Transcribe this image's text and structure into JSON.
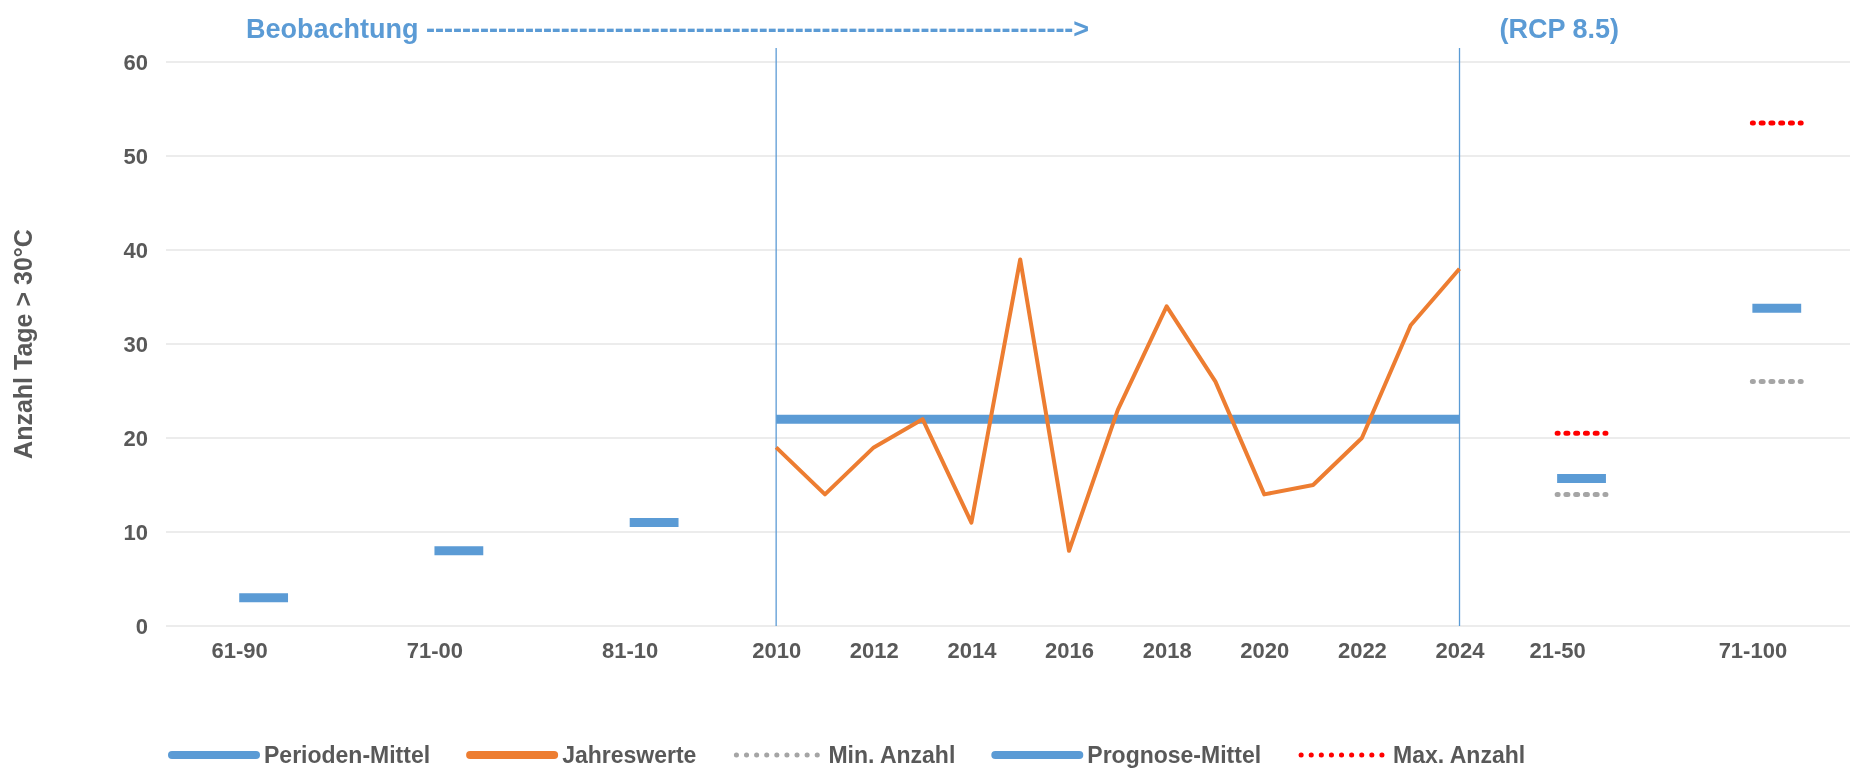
{
  "chart_data": {
    "type": "line",
    "ylabel": "Anzahl Tage > 30°C",
    "categories": [
      "61-90",
      null,
      null,
      null,
      "71-00",
      null,
      null,
      null,
      "81-10",
      null,
      null,
      "2010",
      null,
      "2012",
      null,
      "2014",
      null,
      "2016",
      null,
      "2018",
      null,
      "2020",
      null,
      "2022",
      null,
      "2024",
      null,
      "21-50",
      null,
      null,
      null,
      "71-100",
      null,
      null
    ],
    "series": [
      {
        "name": "Perioden-Mittel",
        "color": "#5b9bd5",
        "line_style": "solid",
        "values": [
          3,
          3,
          null,
          null,
          8,
          8,
          null,
          null,
          11,
          11,
          null,
          22,
          22,
          22,
          22,
          22,
          22,
          22,
          22,
          22,
          22,
          22,
          22,
          22,
          22,
          22,
          null,
          null,
          null,
          null,
          null,
          null,
          null,
          null
        ]
      },
      {
        "name": "Jahreswerte",
        "color": "#ed7d31",
        "line_style": "solid",
        "values": [
          null,
          null,
          null,
          null,
          null,
          null,
          null,
          null,
          null,
          null,
          null,
          19,
          14,
          19,
          22,
          11,
          39,
          8,
          23,
          34,
          26,
          14,
          15,
          20,
          32,
          38,
          null,
          null,
          null,
          null,
          null,
          null,
          null,
          null
        ]
      },
      {
        "name": "Min. Anzahl",
        "color": "#a5a5a5",
        "line_style": "dotted",
        "values": [
          null,
          null,
          null,
          null,
          null,
          null,
          null,
          null,
          null,
          null,
          null,
          null,
          null,
          null,
          null,
          null,
          null,
          null,
          null,
          null,
          null,
          null,
          null,
          null,
          null,
          null,
          null,
          14,
          14,
          null,
          null,
          26,
          26,
          null
        ]
      },
      {
        "name": "Prognose-Mittel",
        "color": "#5b9bd5",
        "line_style": "solid",
        "values": [
          null,
          null,
          null,
          null,
          null,
          null,
          null,
          null,
          null,
          null,
          null,
          null,
          null,
          null,
          null,
          null,
          null,
          null,
          null,
          null,
          null,
          null,
          null,
          null,
          null,
          null,
          null,
          15.7,
          15.7,
          null,
          null,
          33.8,
          33.8,
          null
        ]
      },
      {
        "name": "Max. Anzahl",
        "color": "#ff0000",
        "line_style": "dotted",
        "values": [
          null,
          null,
          null,
          null,
          null,
          null,
          null,
          null,
          null,
          null,
          null,
          null,
          null,
          null,
          null,
          null,
          null,
          null,
          null,
          null,
          null,
          null,
          null,
          null,
          null,
          null,
          null,
          20.5,
          20.5,
          null,
          null,
          53.5,
          53.5,
          null
        ]
      }
    ],
    "ylim": [
      0,
      60
    ],
    "yticks": [
      0,
      10,
      20,
      30,
      40,
      50,
      60
    ],
    "grid": "y",
    "legend": "bottom",
    "marker": "none",
    "ref_lines": [
      {
        "axis": "x",
        "value": "2010",
        "color": "#5b9bd5"
      },
      {
        "axis": "x",
        "value": "2024",
        "color": "#5b9bd5"
      }
    ],
    "annotations": [
      "Beobachtung ------------------------------------------------------------------------>",
      "(RCP 8.5)"
    ]
  }
}
